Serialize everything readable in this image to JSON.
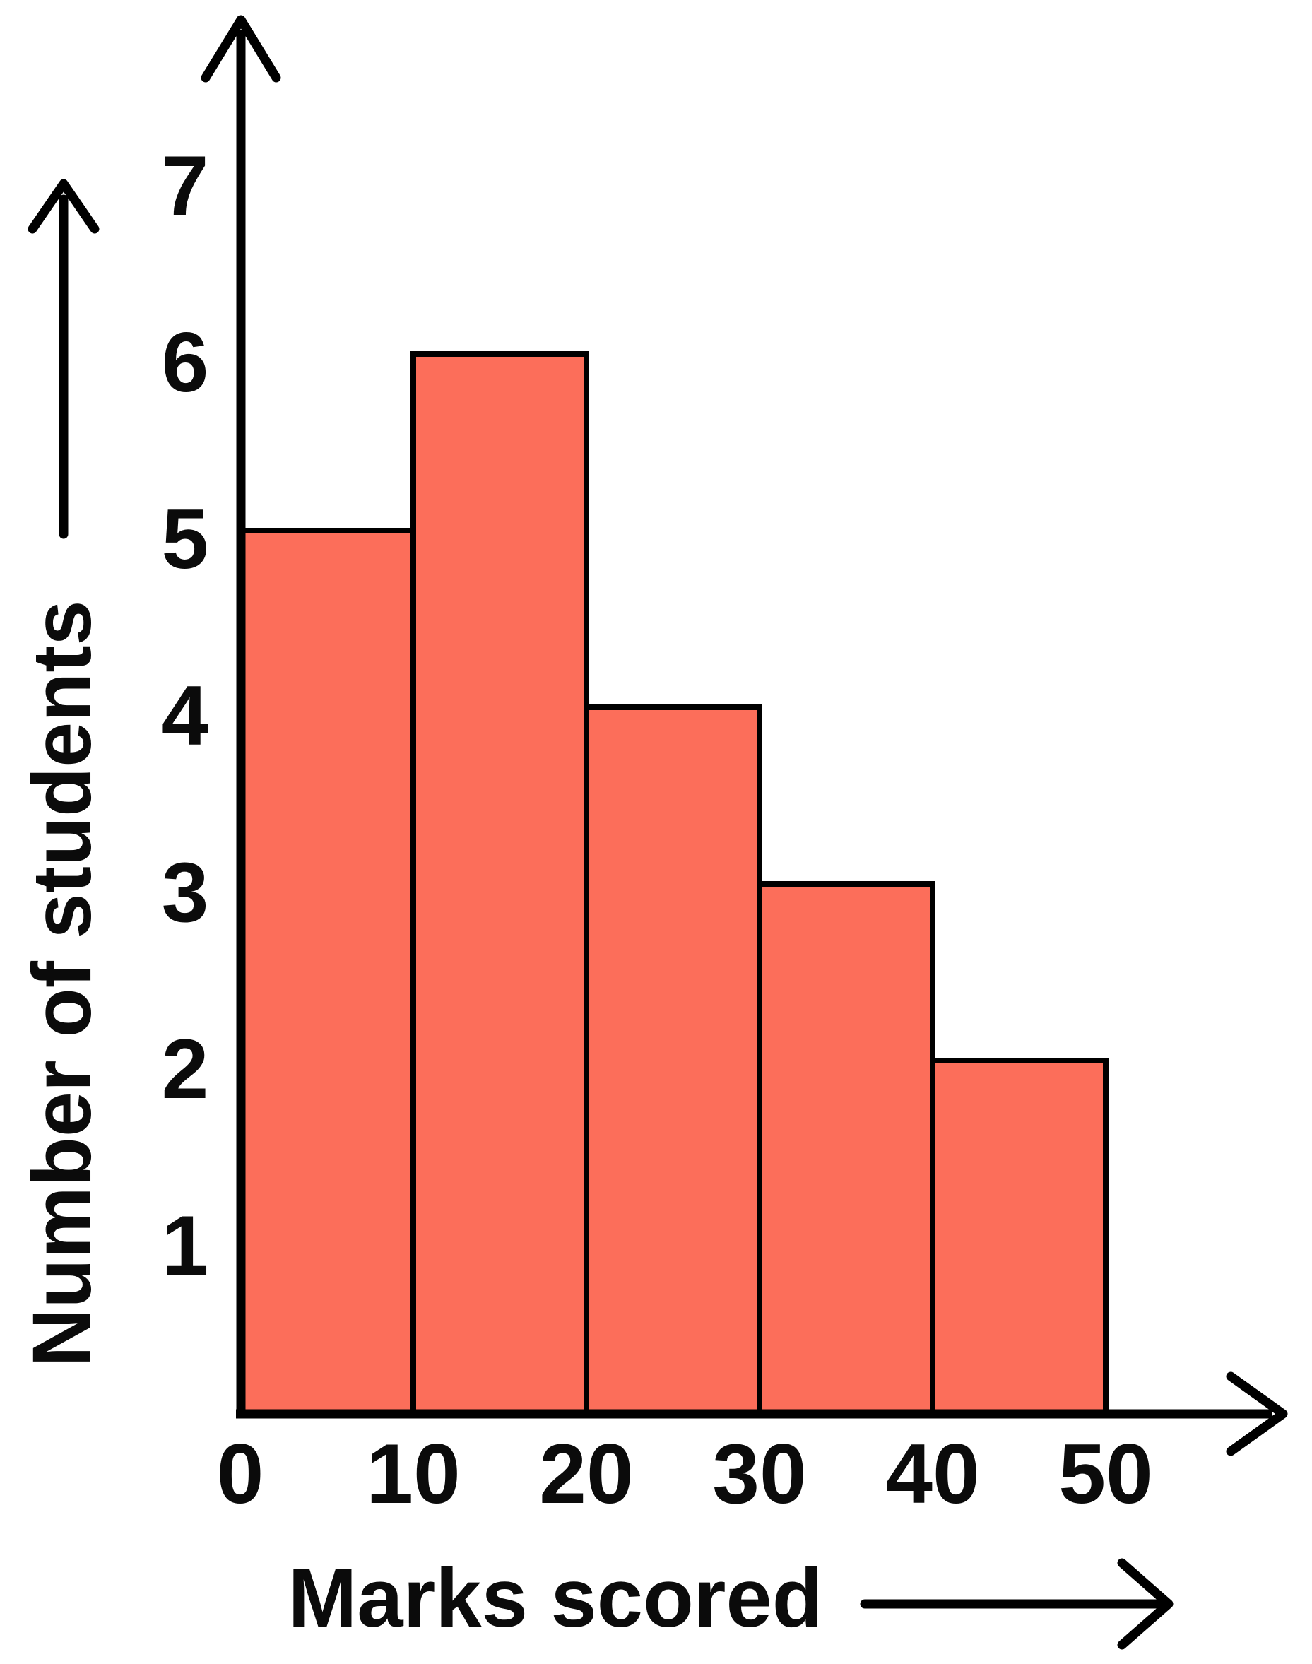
{
  "chart_data": {
    "type": "bar",
    "subtype": "histogram",
    "title": "",
    "xlabel": "Marks scored",
    "ylabel": "Number of students",
    "bins": [
      {
        "x0": 0,
        "x1": 10,
        "count": 5
      },
      {
        "x0": 10,
        "x1": 20,
        "count": 6
      },
      {
        "x0": 20,
        "x1": 30,
        "count": 4
      },
      {
        "x0": 30,
        "x1": 40,
        "count": 3
      },
      {
        "x0": 40,
        "x1": 50,
        "count": 2
      }
    ],
    "x_ticks": [
      0,
      10,
      20,
      30,
      40,
      50
    ],
    "y_ticks": [
      1,
      2,
      3,
      4,
      5,
      6,
      7
    ],
    "xlim": [
      0,
      60
    ],
    "ylim": [
      0,
      7.9
    ],
    "grid": false,
    "legend": false,
    "bar_fill": "#FC6E5A",
    "bar_stroke": "#000000",
    "axis_color": "#000000",
    "text_color": "#0B0B0B"
  }
}
